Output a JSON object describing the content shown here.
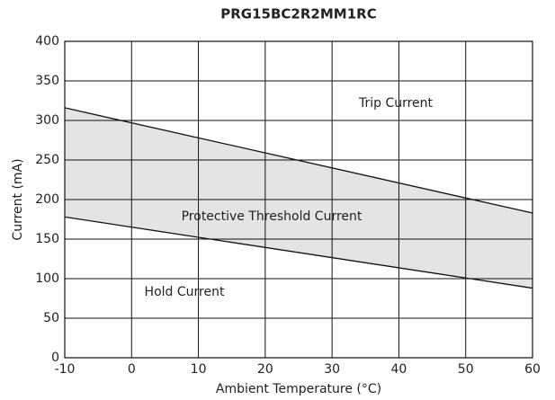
{
  "chart_data": {
    "type": "line",
    "title": "PRG15BC2R2MM1RC",
    "x_label": "Ambient Temperature (°C)",
    "y_label": "Current (mA)",
    "x": [
      -10,
      60
    ],
    "series": [
      {
        "name": "Trip Current",
        "color": "#111111",
        "values": [
          316,
          183
        ]
      },
      {
        "name": "Hold Current",
        "color": "#111111",
        "values": [
          178,
          88
        ]
      }
    ],
    "band": {
      "label": "Protective Threshold Current",
      "color": "#e4e4e6"
    },
    "xlim": [
      -10,
      60
    ],
    "xticks": [
      -10,
      0,
      10,
      20,
      30,
      40,
      50,
      60
    ],
    "ylim": [
      0,
      400
    ],
    "yticks": [
      0,
      50,
      100,
      150,
      200,
      250,
      300,
      350,
      400
    ],
    "grid": true
  }
}
